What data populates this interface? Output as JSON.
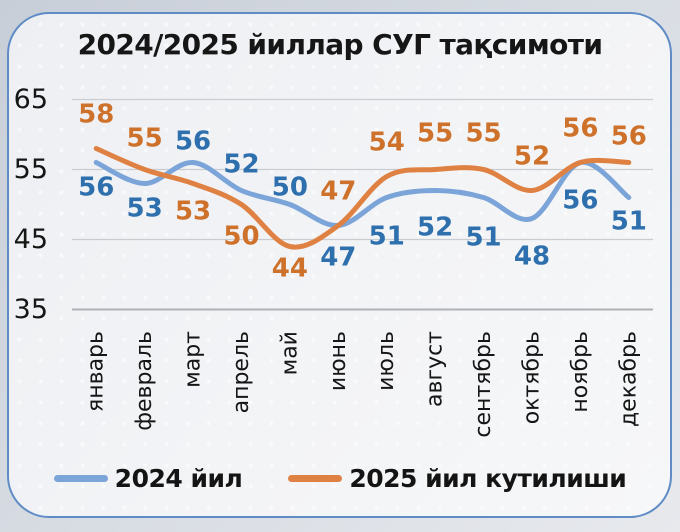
{
  "chart_data": {
    "type": "line",
    "title": "2024/2025 йиллар СУГ тақсимоти",
    "categories": [
      "январь",
      "февраль",
      "март",
      "апрель",
      "май",
      "июнь",
      "июль",
      "август",
      "сентябрь",
      "октябрь",
      "ноябрь",
      "декабрь"
    ],
    "series": [
      {
        "name": "2024 йил",
        "color": "#7BA4D8",
        "label_color": "#2E6FAD",
        "values": [
          56,
          53,
          56,
          52,
          50,
          47,
          51,
          52,
          51,
          48,
          56,
          51
        ],
        "label_dy": [
          25,
          25,
          -21,
          -26,
          -17,
          32,
          39,
          37,
          40,
          38,
          38,
          24
        ]
      },
      {
        "name": "2025 йил кутилиши",
        "color": "#DF8142",
        "label_color": "#CE722B",
        "values": [
          58,
          55,
          53,
          50,
          44,
          47,
          54,
          55,
          55,
          52,
          56,
          56
        ],
        "label_dy": [
          -34,
          -31,
          28,
          32,
          22,
          -34,
          -34,
          -36,
          -36,
          -34,
          -34,
          -26
        ]
      }
    ],
    "y_ticks": [
      65,
      55,
      45,
      35
    ],
    "ylim": [
      35,
      65
    ],
    "xlabel": "",
    "ylabel": "",
    "grid": true,
    "smooth": true,
    "legend_position": "bottom",
    "colors": {
      "frame_border": "#608cc6",
      "gridline": "#c9ccd1",
      "axis_line": "#aeb2b6",
      "tick_text": "#161616"
    }
  }
}
